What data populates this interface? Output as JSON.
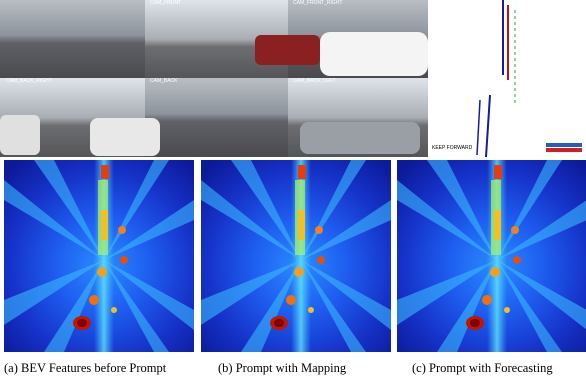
{
  "cameras": [
    {
      "label": "CAM_FRONT"
    },
    {
      "label": "CAM_FRONT_RIGHT"
    },
    {
      "label": "CAM_BACK_RIGHT"
    },
    {
      "label": "CAM_BACK"
    },
    {
      "label": "CAM_BACK_LEFT"
    }
  ],
  "map": {
    "command": "KEEP FORWARD"
  },
  "panels": [
    {
      "caption": "(a) BEV Features before Prompt"
    },
    {
      "caption": "(b) Prompt with Mapping"
    },
    {
      "caption": "(c) Prompt with Forecasting"
    }
  ]
}
